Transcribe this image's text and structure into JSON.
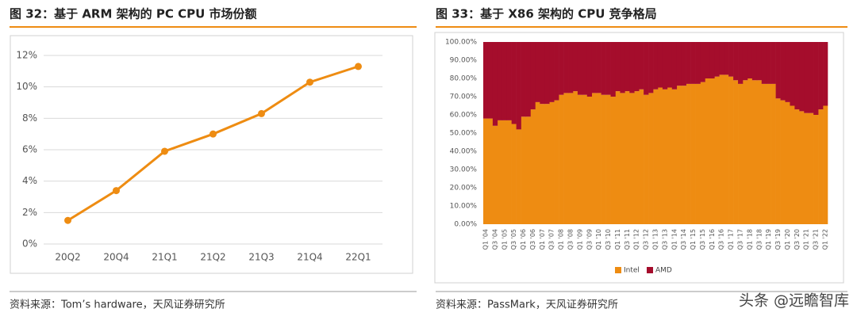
{
  "chart_data": [
    {
      "type": "line",
      "title": "图 32：基于 ARM 架构的 PC CPU 市场份额",
      "source": "资料来源：Tom’s hardware，天风证券研究所",
      "categories": [
        "20Q2",
        "20Q4",
        "21Q1",
        "21Q2",
        "21Q3",
        "21Q4",
        "22Q1"
      ],
      "values": [
        1.5,
        3.4,
        5.9,
        7.0,
        8.3,
        10.3,
        11.3
      ],
      "color": "#ee8c12",
      "ylim": [
        0,
        12
      ],
      "yticks": [
        {
          "value": 0,
          "label": "0%"
        },
        {
          "value": 2,
          "label": "2%"
        },
        {
          "value": 4,
          "label": "4%"
        },
        {
          "value": 6,
          "label": "6%"
        },
        {
          "value": 8,
          "label": "8%"
        },
        {
          "value": 10,
          "label": "10%"
        },
        {
          "value": 12,
          "label": "12%"
        }
      ],
      "grid": true
    },
    {
      "type": "bar",
      "stacked": true,
      "title": "图 33：基于 X86 架构的 CPU 竞争格局",
      "source": "资料来源：PassMark，天风证券研究所",
      "categories": [
        "Q1 '04",
        null,
        "Q3 '04",
        null,
        "Q1 '05",
        null,
        "Q3 '05",
        null,
        "Q1 '06",
        null,
        "Q3 '06",
        null,
        "Q1 '07",
        null,
        "Q3 '07",
        null,
        "Q1 '08",
        null,
        "Q3 '08",
        null,
        "Q1 '09",
        null,
        "Q3 '09",
        null,
        "Q1 '10",
        null,
        "Q3 '10",
        null,
        "Q1 '11",
        null,
        "Q3 '11",
        null,
        "Q1 '12",
        null,
        "Q3 '12",
        null,
        "Q1 '13",
        null,
        "Q3 '13",
        null,
        "Q1 '14",
        null,
        "Q3 '14",
        null,
        "Q1 '15",
        null,
        "Q3 '15",
        null,
        "Q1 '16",
        null,
        "Q3 '16",
        null,
        "Q1 '17",
        null,
        "Q3 '17",
        null,
        "Q1 '18",
        null,
        "Q3 '18",
        null,
        "Q1 '19",
        null,
        "Q3 '19",
        null,
        "Q1 '20",
        null,
        "Q3 '20",
        null,
        "Q1 '21",
        null,
        "Q3 '21",
        null,
        "Q1 '22"
      ],
      "series": [
        {
          "name": "Intel",
          "color": "#ee8c12",
          "values": [
            58,
            58,
            54,
            57,
            57,
            57,
            55,
            52,
            59,
            59,
            63,
            67,
            66,
            66,
            67,
            68,
            71,
            72,
            72,
            73,
            71,
            71,
            70,
            72,
            72,
            71,
            71,
            70,
            73,
            72,
            73,
            72,
            73,
            74,
            71,
            72,
            74,
            75,
            74,
            75,
            74,
            76,
            76,
            77,
            77,
            77,
            78,
            80,
            80,
            81,
            82,
            82,
            81,
            79,
            77,
            79,
            80,
            79,
            79,
            77,
            77,
            77,
            69,
            68,
            67,
            65,
            63,
            62,
            61,
            61,
            60,
            63,
            65
          ]
        },
        {
          "name": "AMD",
          "color": "#a50d2c",
          "values": [
            42,
            42,
            46,
            43,
            43,
            43,
            45,
            48,
            41,
            41,
            37,
            33,
            34,
            34,
            33,
            32,
            29,
            28,
            28,
            27,
            29,
            29,
            30,
            28,
            28,
            29,
            29,
            30,
            27,
            28,
            27,
            28,
            27,
            26,
            29,
            28,
            26,
            25,
            26,
            25,
            26,
            24,
            24,
            23,
            23,
            23,
            22,
            20,
            20,
            19,
            18,
            18,
            19,
            21,
            23,
            21,
            20,
            21,
            21,
            23,
            23,
            23,
            31,
            32,
            33,
            35,
            37,
            38,
            39,
            39,
            40,
            37,
            35
          ]
        }
      ],
      "ylim": [
        0,
        100
      ],
      "yticks": [
        {
          "value": 0,
          "label": "0.00%"
        },
        {
          "value": 10,
          "label": "10.00%"
        },
        {
          "value": 20,
          "label": "20.00%"
        },
        {
          "value": 30,
          "label": "30.00%"
        },
        {
          "value": 40,
          "label": "40.00%"
        },
        {
          "value": 50,
          "label": "50.00%"
        },
        {
          "value": 60,
          "label": "60.00%"
        },
        {
          "value": 70,
          "label": "70.00%"
        },
        {
          "value": 80,
          "label": "80.00%"
        },
        {
          "value": 90,
          "label": "90.00%"
        },
        {
          "value": 100,
          "label": "100.00%"
        }
      ],
      "legend": "bottom"
    }
  ],
  "watermark": "头条 @远瞻智库"
}
